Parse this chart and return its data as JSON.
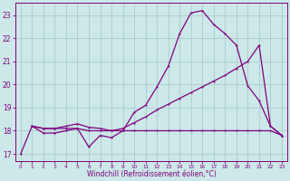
{
  "bg_color": "#cce8e8",
  "grid_color": "#aacccc",
  "line_color": "#800080",
  "xlabel": "Windchill (Refroidissement éolien,°C)",
  "xlim": [
    -0.5,
    23.5
  ],
  "ylim": [
    16.7,
    23.55
  ],
  "yticks": [
    17,
    18,
    19,
    20,
    21,
    22,
    23
  ],
  "xticks": [
    0,
    1,
    2,
    3,
    4,
    5,
    6,
    7,
    8,
    9,
    10,
    11,
    12,
    13,
    14,
    15,
    16,
    17,
    18,
    19,
    20,
    21,
    22,
    23
  ],
  "s1_x": [
    0,
    1,
    2,
    3,
    4,
    5,
    6,
    7,
    8,
    9,
    10,
    11,
    12,
    13,
    14,
    15,
    16,
    17,
    18,
    19,
    20,
    21,
    22,
    23
  ],
  "s1_y": [
    17.0,
    18.2,
    17.9,
    17.9,
    18.0,
    18.1,
    17.3,
    17.8,
    17.7,
    18.0,
    18.8,
    19.1,
    19.9,
    20.8,
    22.2,
    23.1,
    23.2,
    22.6,
    22.2,
    21.7,
    19.95,
    19.3,
    18.2,
    17.8
  ],
  "s2_x": [
    1,
    2,
    3,
    4,
    5,
    6,
    7,
    8,
    9,
    10,
    11,
    12,
    13,
    14,
    15,
    16,
    17,
    18,
    19,
    20,
    21,
    22,
    23
  ],
  "s2_y": [
    18.2,
    18.1,
    18.1,
    18.2,
    18.3,
    18.15,
    18.1,
    18.0,
    18.1,
    18.35,
    18.6,
    18.9,
    19.15,
    19.4,
    19.65,
    19.9,
    20.15,
    20.4,
    20.7,
    21.0,
    21.7,
    18.2,
    17.8
  ],
  "s3_x": [
    1,
    2,
    3,
    4,
    5,
    6,
    7,
    8,
    9,
    10,
    11,
    12,
    13,
    14,
    15,
    16,
    17,
    18,
    19,
    20,
    21,
    22,
    23
  ],
  "s3_y": [
    18.2,
    18.1,
    18.1,
    18.1,
    18.1,
    18.0,
    18.0,
    18.0,
    18.0,
    18.0,
    18.0,
    18.0,
    18.0,
    18.0,
    18.0,
    18.0,
    18.0,
    18.0,
    18.0,
    18.0,
    18.0,
    18.0,
    17.8
  ]
}
